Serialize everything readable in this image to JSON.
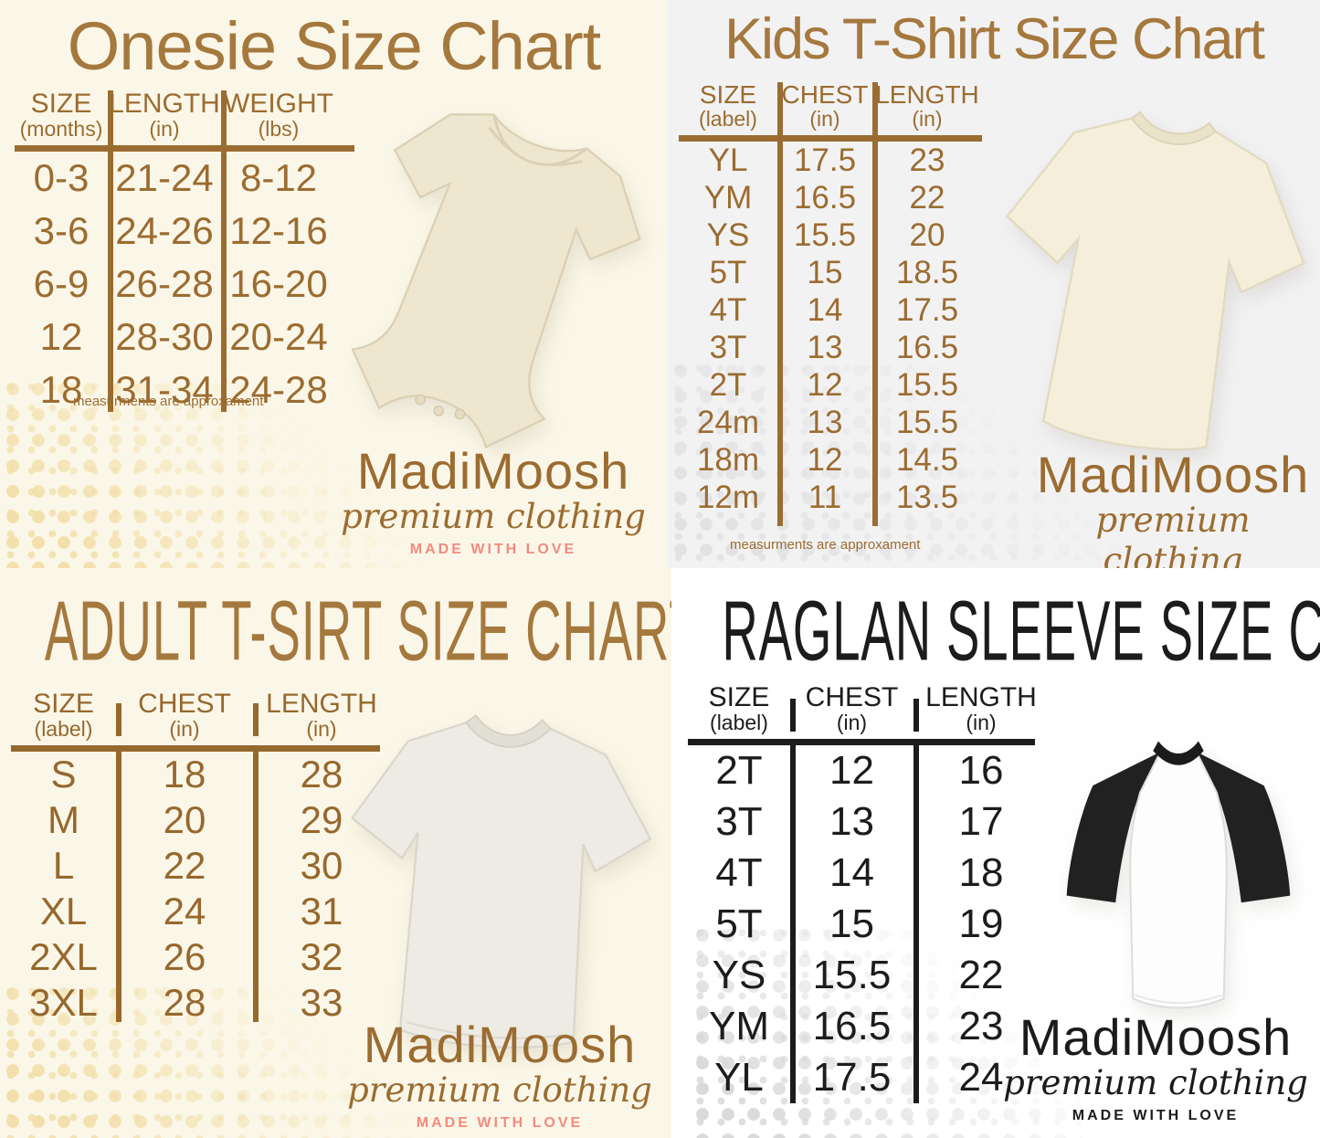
{
  "brand": {
    "name": "MadiMoosh",
    "tagline": "premium clothing",
    "motto": "MADE WITH LOVE"
  },
  "colors": {
    "brown": "#a5783e",
    "table_brown": "#9b6c31",
    "salmon": "#f28b7d",
    "black": "#1c1c1c",
    "cream_bg": "#fbf7e8",
    "gray_bg": "#f2f2f3",
    "white_bg": "#ffffff"
  },
  "charts": {
    "onesie": {
      "title": "Onesie Size Chart",
      "note": "measurments are approxament",
      "garment": "onesie",
      "columns": [
        {
          "label": "SIZE",
          "sub": "(months)"
        },
        {
          "label": "LENGTH",
          "sub": "(in)"
        },
        {
          "label": "WEIGHT",
          "sub": "(lbs)"
        }
      ],
      "rows": [
        [
          "0-3",
          "21-24",
          "8-12"
        ],
        [
          "3-6",
          "24-26",
          "12-16"
        ],
        [
          "6-9",
          "26-28",
          "16-20"
        ],
        [
          "12",
          "28-30",
          "20-24"
        ],
        [
          "18",
          "31-34",
          "24-28"
        ]
      ]
    },
    "kids": {
      "title": "Kids T-Shirt Size Chart",
      "note": "measurments are approxament",
      "garment": "kids-tshirt",
      "columns": [
        {
          "label": "SIZE",
          "sub": "(label)"
        },
        {
          "label": "CHEST",
          "sub": "(in)"
        },
        {
          "label": "LENGTH",
          "sub": "(in)"
        }
      ],
      "rows": [
        [
          "YL",
          "17.5",
          "23"
        ],
        [
          "YM",
          "16.5",
          "22"
        ],
        [
          "YS",
          "15.5",
          "20"
        ],
        [
          "5T",
          "15",
          "18.5"
        ],
        [
          "4T",
          "14",
          "17.5"
        ],
        [
          "3T",
          "13",
          "16.5"
        ],
        [
          "2T",
          "12",
          "15.5"
        ],
        [
          "24m",
          "13",
          "15.5"
        ],
        [
          "18m",
          "12",
          "14.5"
        ],
        [
          "12m",
          "11",
          "13.5"
        ]
      ]
    },
    "adult": {
      "title": "ADULT T-SIRT SIZE CHART",
      "garment": "adult-tshirt",
      "columns": [
        {
          "label": "SIZE",
          "sub": "(label)"
        },
        {
          "label": "CHEST",
          "sub": "(in)"
        },
        {
          "label": "LENGTH",
          "sub": "(in)"
        }
      ],
      "rows": [
        [
          "S",
          "18",
          "28"
        ],
        [
          "M",
          "20",
          "29"
        ],
        [
          "L",
          "22",
          "30"
        ],
        [
          "XL",
          "24",
          "31"
        ],
        [
          "2XL",
          "26",
          "32"
        ],
        [
          "3XL",
          "28",
          "33"
        ]
      ]
    },
    "raglan": {
      "title": "RAGLAN SLEEVE SIZE CHART",
      "garment": "raglan-shirt",
      "columns": [
        {
          "label": "SIZE",
          "sub": "(label)"
        },
        {
          "label": "CHEST",
          "sub": "(in)"
        },
        {
          "label": "LENGTH",
          "sub": "(in)"
        }
      ],
      "rows": [
        [
          "2T",
          "12",
          "16"
        ],
        [
          "3T",
          "13",
          "17"
        ],
        [
          "4T",
          "14",
          "18"
        ],
        [
          "5T",
          "15",
          "19"
        ],
        [
          "YS",
          "15.5",
          "22"
        ],
        [
          "YM",
          "16.5",
          "23"
        ],
        [
          "YL",
          "17.5",
          "24"
        ]
      ]
    }
  }
}
